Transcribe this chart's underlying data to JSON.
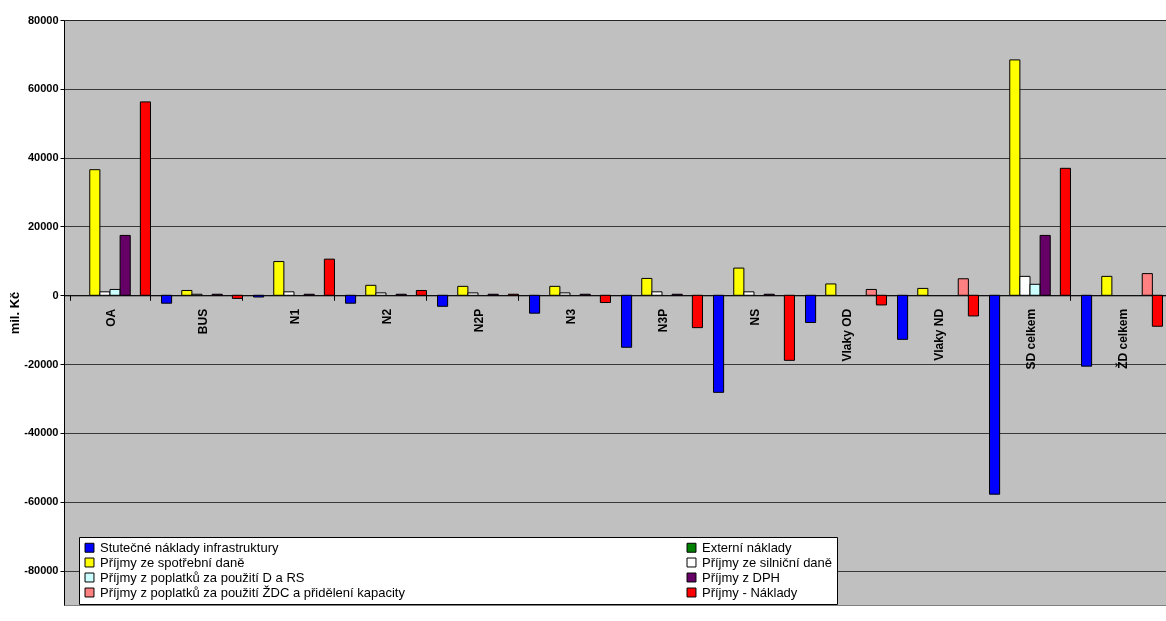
{
  "chart_data": {
    "type": "bar",
    "ylabel": "mil. Kč",
    "categories": [
      "OA",
      "BUS",
      "N1",
      "N2",
      "N2P",
      "N3",
      "N3P",
      "NS",
      "Vlaky OD",
      "Vlaky ND",
      "SD celkem",
      "ŽD celkem"
    ],
    "series": [
      {
        "name": "Stutečné náklady infrastruktury",
        "color": "#0000ff",
        "values": [
          null,
          -2300,
          -500,
          -2300,
          -3200,
          -5200,
          -15100,
          -28200,
          -7900,
          -12800,
          -57800,
          -20600
        ]
      },
      {
        "name": "Externí náklady",
        "color": "#008000",
        "values": [
          null,
          null,
          null,
          null,
          null,
          null,
          null,
          null,
          null,
          null,
          null,
          null
        ]
      },
      {
        "name": "Příjmy ze spotřební daně",
        "color": "#ffff00",
        "values": [
          36500,
          1400,
          9800,
          2900,
          2600,
          2600,
          4900,
          7900,
          3300,
          2000,
          68400,
          5500
        ]
      },
      {
        "name": "Příjmy ze silniční daně",
        "color": "#ffffff",
        "values": [
          1000,
          300,
          1000,
          700,
          700,
          700,
          1000,
          1000,
          null,
          null,
          5500,
          null
        ]
      },
      {
        "name": "Příjmy z poplatků za použití D a RS",
        "color": "#ccffff",
        "values": [
          1700,
          null,
          null,
          null,
          null,
          null,
          null,
          null,
          null,
          null,
          3200,
          null
        ]
      },
      {
        "name": "Příjmy z DPH",
        "color": "#660066",
        "values": [
          17400,
          300,
          300,
          300,
          300,
          300,
          300,
          300,
          null,
          null,
          17400,
          null
        ]
      },
      {
        "name": "Příjmy z poplatků za použití ŽDC a přidělení kapacity",
        "color": "#ff8080",
        "values": [
          null,
          null,
          null,
          null,
          null,
          null,
          null,
          null,
          1700,
          4800,
          null,
          6300
        ]
      },
      {
        "name": "Příjmy - Náklady",
        "color": "#ff0000",
        "values": [
          56200,
          -900,
          10500,
          1400,
          300,
          -2100,
          -9400,
          -18900,
          -2800,
          -6000,
          36900,
          -9000
        ]
      }
    ],
    "ylim": [
      -90000,
      80000
    ],
    "yticks": [
      -80000,
      -60000,
      -40000,
      -20000,
      0,
      20000,
      40000,
      60000,
      80000
    ],
    "grid": "y",
    "legend": "bottom"
  }
}
